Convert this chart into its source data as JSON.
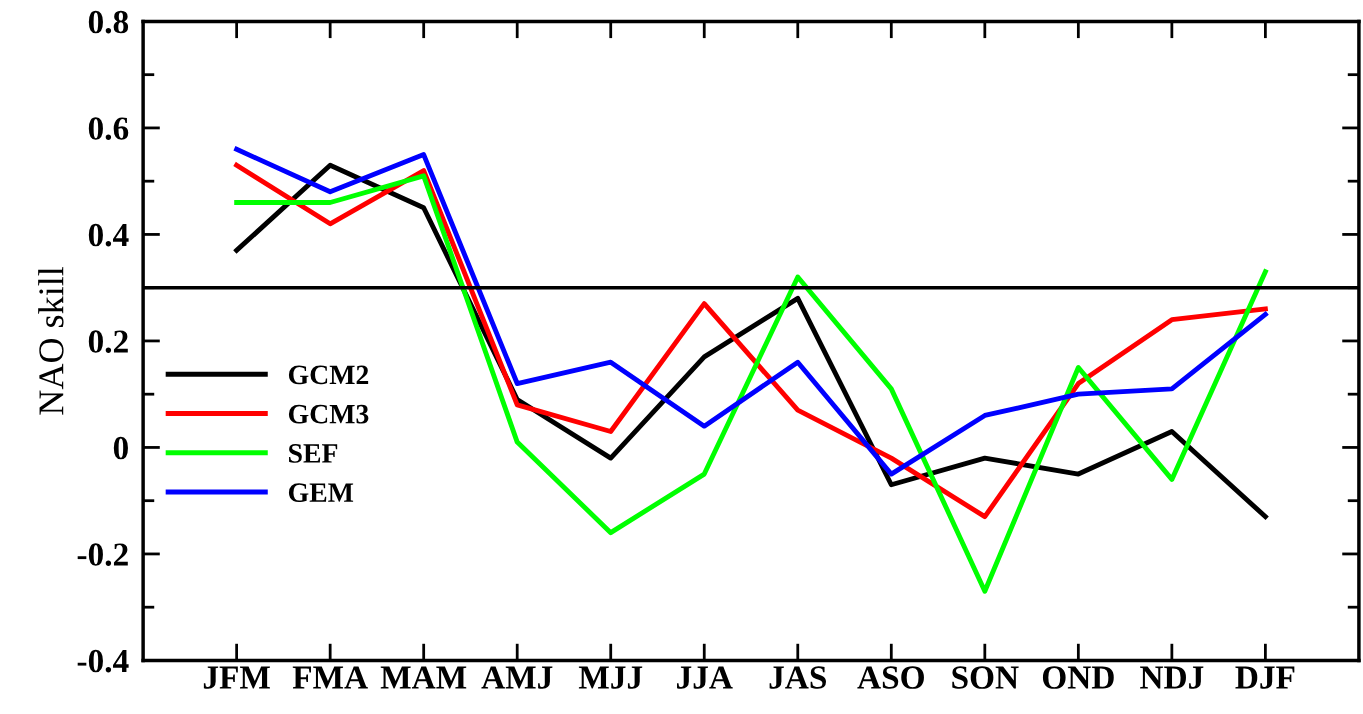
{
  "chart_data": {
    "type": "line",
    "ylabel": "NAO skill",
    "categories": [
      "JFM",
      "FMA",
      "MAM",
      "AMJ",
      "MJJ",
      "JJA",
      "JAS",
      "ASO",
      "SON",
      "OND",
      "NDJ",
      "DJF"
    ],
    "series": [
      {
        "name": "GCM2",
        "color": "#000000",
        "values": [
          0.37,
          0.53,
          0.45,
          0.09,
          -0.02,
          0.17,
          0.28,
          -0.07,
          -0.02,
          -0.05,
          0.03,
          -0.13
        ]
      },
      {
        "name": "GCM3",
        "color": "#ff0000",
        "values": [
          0.53,
          0.42,
          0.52,
          0.08,
          0.03,
          0.27,
          0.07,
          -0.02,
          -0.13,
          0.12,
          0.24,
          0.26
        ]
      },
      {
        "name": "SEF",
        "color": "#00ff00",
        "values": [
          0.46,
          0.46,
          0.51,
          0.01,
          -0.16,
          -0.05,
          0.32,
          0.11,
          -0.27,
          0.15,
          -0.06,
          0.33
        ]
      },
      {
        "name": "GEM",
        "color": "#0000ff",
        "values": [
          0.56,
          0.48,
          0.55,
          0.12,
          0.16,
          0.04,
          0.16,
          -0.05,
          0.06,
          0.1,
          0.11,
          0.25
        ]
      }
    ],
    "ylim": [
      -0.4,
      0.8
    ],
    "yticks": [
      -0.4,
      {
        "value": -0.3,
        "label": null
      },
      -0.2,
      {
        "value": -0.1,
        "label": null
      },
      0,
      {
        "value": 0.1,
        "label": null
      },
      0.2,
      {
        "value": 0.3,
        "label": null
      },
      0.4,
      {
        "value": 0.5,
        "label": null
      },
      0.6,
      {
        "value": 0.7,
        "label": null
      },
      0.8
    ],
    "ref_lines": [
      {
        "axis": "y",
        "value": 0.3,
        "color": "#000000",
        "line_style": "solid"
      }
    ],
    "grid": false,
    "legend": "bottom left",
    "marker": "none",
    "line_style": "solid"
  }
}
